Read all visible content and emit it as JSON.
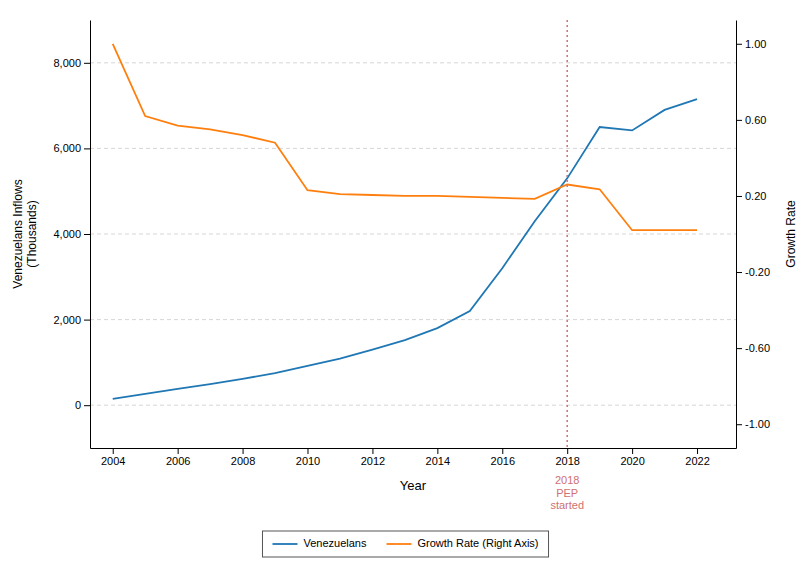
{
  "chart_data": {
    "type": "line",
    "xlabel": "Year",
    "ylabel": "Venezuelans Inflows\n(Thousands)",
    "y2label": "Growth Rate",
    "x": [
      2004,
      2005,
      2006,
      2007,
      2008,
      2009,
      2010,
      2011,
      2012,
      2013,
      2014,
      2015,
      2016,
      2017,
      2018,
      2019,
      2020,
      2021,
      2022
    ],
    "series": [
      {
        "name": "Venezuelans",
        "values": [
          150,
          265,
          380,
          490,
          615,
          750,
          920,
          1090,
          1300,
          1520,
          1800,
          2200,
          3200,
          4300,
          5300,
          6500,
          6420,
          6900,
          7150
        ]
      },
      {
        "name": "Growth Rate (Right Axis)",
        "axis": "y2",
        "values": [
          1.0,
          0.62,
          0.57,
          0.55,
          0.52,
          0.48,
          0.23,
          0.21,
          0.205,
          0.2,
          0.2,
          0.195,
          0.19,
          0.185,
          0.26,
          0.235,
          0.02,
          0.02,
          0.02
        ]
      }
    ],
    "xlim": [
      2003.3,
      2023.2
    ],
    "xticks": [
      2004,
      2006,
      2008,
      2010,
      2012,
      2014,
      2016,
      2018,
      2020,
      2022
    ],
    "ylim": [
      -1000,
      9000
    ],
    "yticks": [
      0,
      {
        "value": 2000,
        "label": "2,000"
      },
      {
        "value": 4000,
        "label": "4,000"
      },
      {
        "value": 6000,
        "label": "6,000"
      },
      {
        "value": 8000,
        "label": "8,000"
      }
    ],
    "y2lim": [
      -1.125,
      1.125
    ],
    "y2ticks": [
      {
        "value": -1.0,
        "label": "-1.00"
      },
      {
        "value": -0.6,
        "label": "-0.60"
      },
      {
        "value": -0.2,
        "label": "-0.20"
      },
      {
        "value": 0.2,
        "label": "0.20"
      },
      {
        "value": 0.6,
        "label": "0.60"
      },
      {
        "value": 1.0,
        "label": "1.00"
      }
    ],
    "grid": true,
    "legend": "bottom",
    "annotations": [
      {
        "x": 2018,
        "text": "2018\nPEP\nstarted",
        "color": "#d07070"
      }
    ]
  }
}
